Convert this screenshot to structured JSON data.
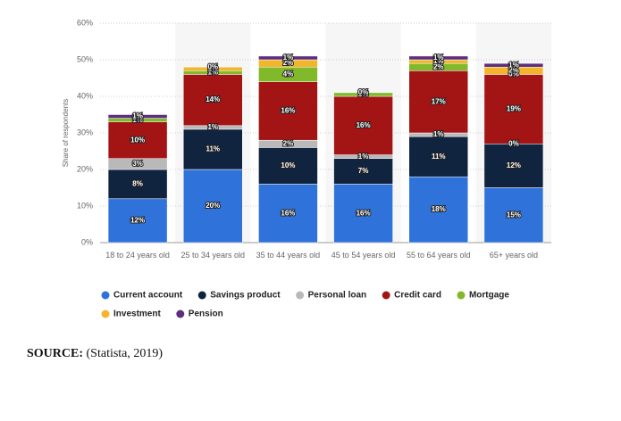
{
  "chart_data": {
    "type": "stacked-bar",
    "y_label": "Share of respondents",
    "categories": [
      "18 to 24 years old",
      "25 to 34 years old",
      "35 to 44 years old",
      "45 to 54 years old",
      "55 to 64 years old",
      "65+ years old"
    ],
    "ylim": [
      0,
      60
    ],
    "yticks": [
      {
        "value": 0,
        "label": "0%"
      },
      {
        "value": 10,
        "label": "10%"
      },
      {
        "value": 20,
        "label": "20%"
      },
      {
        "value": 30,
        "label": "30%"
      },
      {
        "value": 40,
        "label": "40%"
      },
      {
        "value": 50,
        "label": "50%"
      },
      {
        "value": 60,
        "label": "60%"
      }
    ],
    "grid": true,
    "series": [
      {
        "name": "Current account",
        "color": "#2f72d9",
        "values": [
          12,
          20,
          16,
          16,
          18,
          15
        ],
        "value_labels": [
          "12%",
          "20%",
          "16%",
          "16%",
          "18%",
          "15%"
        ]
      },
      {
        "name": "Savings product",
        "color": "#10233f",
        "values": [
          8,
          11,
          10,
          7,
          11,
          12
        ],
        "value_labels": [
          "8%",
          "11%",
          "10%",
          "7%",
          "11%",
          "12%"
        ]
      },
      {
        "name": "Personal loan",
        "color": "#b9b9b9",
        "values": [
          3,
          1,
          2,
          1,
          1,
          0
        ],
        "value_labels": [
          "3%",
          "1%",
          "2%",
          "1%",
          "1%",
          "0%"
        ]
      },
      {
        "name": "Credit card",
        "color": "#a31414",
        "values": [
          10,
          14,
          16,
          16,
          17,
          19
        ],
        "value_labels": [
          "10%",
          "14%",
          "16%",
          "16%",
          "17%",
          "19%"
        ]
      },
      {
        "name": "Mortgage",
        "color": "#81b92a",
        "values": [
          1,
          1,
          4,
          1,
          2,
          0
        ],
        "value_labels": [
          "1%",
          "1%",
          "4%",
          "1%",
          "2%",
          "0%"
        ]
      },
      {
        "name": "Investment",
        "color": "#f2b52c",
        "values": [
          0,
          1,
          2,
          0,
          1,
          2
        ],
        "value_labels": [
          "0%",
          "1%",
          "2%",
          "0%",
          "1%",
          "2%"
        ]
      },
      {
        "name": "Pension",
        "color": "#5c2e7c",
        "values": [
          1,
          0,
          1,
          0,
          1,
          1
        ],
        "value_labels": [
          "1%",
          "0%",
          "1%",
          "0%",
          "1%",
          "1%"
        ]
      }
    ]
  },
  "source": {
    "label": "SOURCE:",
    "text": "(Statista, 2019)"
  }
}
